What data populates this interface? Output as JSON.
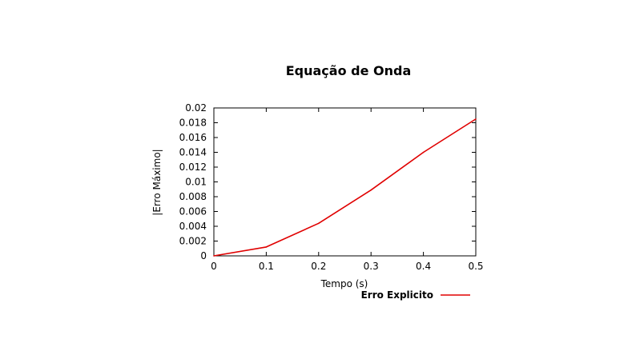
{
  "chart_data": {
    "type": "line",
    "title": "Equação de Onda",
    "xlabel": "Tempo (s)",
    "ylabel": "|Erro Máximo|",
    "xlim": [
      0,
      0.5
    ],
    "ylim": [
      0,
      0.02
    ],
    "xticks": [
      "0",
      "0.1",
      "0.2",
      "0.3",
      "0.4",
      "0.5"
    ],
    "yticks": [
      "0",
      "0.002",
      "0.004",
      "0.006",
      "0.008",
      "0.01",
      "0.012",
      "0.014",
      "0.016",
      "0.018",
      "0.02"
    ],
    "grid": false,
    "legend_position": "bottom-right",
    "series": [
      {
        "name": "Erro Explicito",
        "color": "#e00000",
        "x": [
          0,
          0.1,
          0.2,
          0.3,
          0.4,
          0.5
        ],
        "y": [
          0.0,
          0.0012,
          0.0044,
          0.0089,
          0.014,
          0.0185
        ]
      }
    ]
  }
}
